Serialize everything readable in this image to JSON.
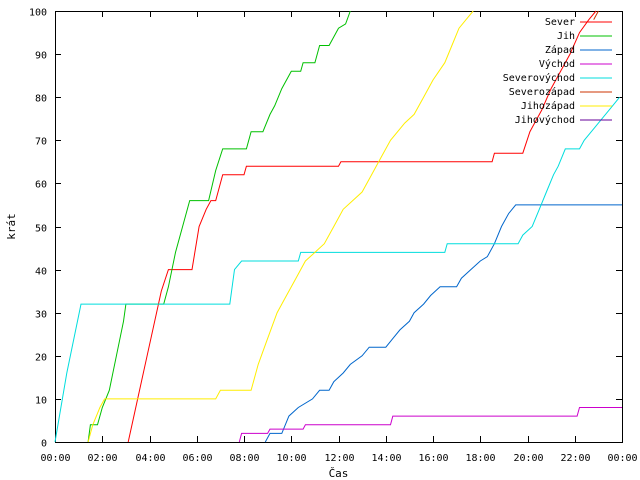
{
  "chart_data": {
    "type": "line",
    "title": "",
    "xlabel": "Čas",
    "ylabel": "krát",
    "xlim": [
      0,
      24
    ],
    "ylim": [
      0,
      100
    ],
    "x_ticks": [
      {
        "value": 0,
        "label": "00:00"
      },
      {
        "value": 2,
        "label": "02:00"
      },
      {
        "value": 4,
        "label": "04:00"
      },
      {
        "value": 6,
        "label": "06:00"
      },
      {
        "value": 8,
        "label": "08:00"
      },
      {
        "value": 10,
        "label": "10:00"
      },
      {
        "value": 12,
        "label": "12:00"
      },
      {
        "value": 14,
        "label": "14:00"
      },
      {
        "value": 16,
        "label": "16:00"
      },
      {
        "value": 18,
        "label": "18:00"
      },
      {
        "value": 20,
        "label": "20:00"
      },
      {
        "value": 22,
        "label": "22:00"
      },
      {
        "value": 24,
        "label": "00:00"
      }
    ],
    "y_ticks": [
      0,
      10,
      20,
      30,
      40,
      50,
      60,
      70,
      80,
      90,
      100
    ],
    "grid": false,
    "legend_position": "top-right",
    "series": [
      {
        "name": "Sever",
        "color": "#ff0000",
        "points": [
          [
            3.1,
            0
          ],
          [
            3.9,
            20
          ],
          [
            4.5,
            35
          ],
          [
            4.8,
            40
          ],
          [
            5.8,
            40
          ],
          [
            6.1,
            50
          ],
          [
            6.4,
            54
          ],
          [
            6.6,
            56
          ],
          [
            6.8,
            56
          ],
          [
            7.1,
            62
          ],
          [
            8.0,
            62
          ],
          [
            8.1,
            64
          ],
          [
            12.0,
            64
          ],
          [
            12.1,
            65
          ],
          [
            18.5,
            65
          ],
          [
            18.6,
            67
          ],
          [
            19.8,
            67
          ],
          [
            20.1,
            72
          ],
          [
            20.6,
            77
          ],
          [
            21.0,
            82
          ],
          [
            21.4,
            86
          ],
          [
            21.8,
            90
          ],
          [
            22.2,
            95
          ],
          [
            22.6,
            98
          ],
          [
            22.9,
            100
          ]
        ]
      },
      {
        "name": "Jih",
        "color": "#00c000",
        "points": [
          [
            1.4,
            0
          ],
          [
            1.5,
            4
          ],
          [
            1.8,
            4
          ],
          [
            2.0,
            8
          ],
          [
            2.3,
            12
          ],
          [
            2.6,
            20
          ],
          [
            2.9,
            28
          ],
          [
            3.0,
            32
          ],
          [
            4.6,
            32
          ],
          [
            4.8,
            36
          ],
          [
            5.1,
            44
          ],
          [
            5.4,
            50
          ],
          [
            5.7,
            56
          ],
          [
            6.5,
            56
          ],
          [
            6.8,
            63
          ],
          [
            7.1,
            68
          ],
          [
            8.1,
            68
          ],
          [
            8.3,
            72
          ],
          [
            8.8,
            72
          ],
          [
            9.1,
            76
          ],
          [
            9.3,
            78
          ],
          [
            9.6,
            82
          ],
          [
            10.0,
            86
          ],
          [
            10.4,
            86
          ],
          [
            10.5,
            88
          ],
          [
            11.0,
            88
          ],
          [
            11.2,
            92
          ],
          [
            11.6,
            92
          ],
          [
            11.8,
            94
          ],
          [
            12.0,
            96
          ],
          [
            12.3,
            97
          ],
          [
            12.5,
            100
          ]
        ]
      },
      {
        "name": "Západ",
        "color": "#0066cc",
        "points": [
          [
            8.9,
            0
          ],
          [
            9.1,
            2
          ],
          [
            9.6,
            2
          ],
          [
            9.9,
            6
          ],
          [
            10.3,
            8
          ],
          [
            10.9,
            10
          ],
          [
            11.2,
            12
          ],
          [
            11.6,
            12
          ],
          [
            11.8,
            14
          ],
          [
            12.2,
            16
          ],
          [
            12.5,
            18
          ],
          [
            13.0,
            20
          ],
          [
            13.3,
            22
          ],
          [
            14.0,
            22
          ],
          [
            14.3,
            24
          ],
          [
            14.6,
            26
          ],
          [
            15.0,
            28
          ],
          [
            15.2,
            30
          ],
          [
            15.6,
            32
          ],
          [
            15.9,
            34
          ],
          [
            16.3,
            36
          ],
          [
            17.0,
            36
          ],
          [
            17.2,
            38
          ],
          [
            17.6,
            40
          ],
          [
            18.0,
            42
          ],
          [
            18.3,
            43
          ],
          [
            18.6,
            46
          ],
          [
            18.9,
            50
          ],
          [
            19.2,
            53
          ],
          [
            19.5,
            55
          ],
          [
            24.0,
            55
          ]
        ]
      },
      {
        "name": "Východ",
        "color": "#cc00cc",
        "points": [
          [
            7.8,
            0
          ],
          [
            7.9,
            2
          ],
          [
            9.0,
            2
          ],
          [
            9.1,
            3
          ],
          [
            10.5,
            3
          ],
          [
            10.6,
            4
          ],
          [
            14.2,
            4
          ],
          [
            14.3,
            6
          ],
          [
            22.1,
            6
          ],
          [
            22.2,
            8
          ],
          [
            24.0,
            8
          ]
        ]
      },
      {
        "name": "Severovýchod",
        "color": "#00dddd",
        "points": [
          [
            0.0,
            0
          ],
          [
            0.5,
            16
          ],
          [
            1.1,
            32
          ],
          [
            7.4,
            32
          ],
          [
            7.6,
            40
          ],
          [
            7.9,
            42
          ],
          [
            10.3,
            42
          ],
          [
            10.4,
            44
          ],
          [
            16.5,
            44
          ],
          [
            16.6,
            46
          ],
          [
            19.6,
            46
          ],
          [
            19.8,
            48
          ],
          [
            20.2,
            50
          ],
          [
            20.5,
            54
          ],
          [
            20.8,
            58
          ],
          [
            21.1,
            62
          ],
          [
            21.3,
            64
          ],
          [
            21.6,
            68
          ],
          [
            22.2,
            68
          ],
          [
            22.4,
            70
          ],
          [
            22.7,
            72
          ],
          [
            23.0,
            74
          ],
          [
            23.3,
            76
          ],
          [
            23.6,
            78
          ],
          [
            23.9,
            80
          ]
        ]
      },
      {
        "name": "Severozápad",
        "color": "#cc3300",
        "points": [
          [
            22.8,
            98
          ],
          [
            23.0,
            100
          ]
        ]
      },
      {
        "name": "Jihozápad",
        "color": "#ffee00",
        "points": [
          [
            1.4,
            0
          ],
          [
            1.6,
            4
          ],
          [
            1.9,
            8
          ],
          [
            2.1,
            10
          ],
          [
            6.8,
            10
          ],
          [
            7.0,
            12
          ],
          [
            8.3,
            12
          ],
          [
            8.6,
            18
          ],
          [
            9.0,
            24
          ],
          [
            9.4,
            30
          ],
          [
            9.8,
            34
          ],
          [
            10.2,
            38
          ],
          [
            10.6,
            42
          ],
          [
            11.0,
            44
          ],
          [
            11.4,
            46
          ],
          [
            11.8,
            50
          ],
          [
            12.2,
            54
          ],
          [
            12.6,
            56
          ],
          [
            13.0,
            58
          ],
          [
            13.4,
            62
          ],
          [
            13.8,
            66
          ],
          [
            14.2,
            70
          ],
          [
            14.8,
            74
          ],
          [
            15.2,
            76
          ],
          [
            15.6,
            80
          ],
          [
            16.0,
            84
          ],
          [
            16.5,
            88
          ],
          [
            16.8,
            92
          ],
          [
            17.1,
            96
          ],
          [
            17.4,
            98
          ],
          [
            17.7,
            100
          ]
        ]
      },
      {
        "name": "Jihovýchod",
        "color": "#660099",
        "points": []
      }
    ]
  }
}
